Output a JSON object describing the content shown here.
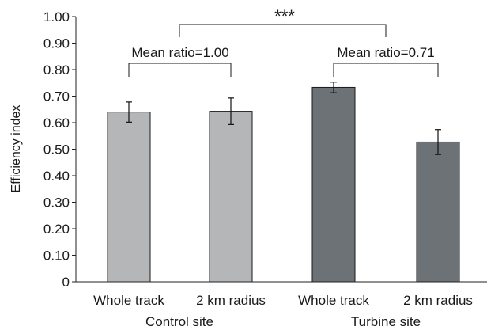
{
  "chart_data": {
    "type": "bar",
    "categories": [
      "Whole track",
      "2 km radius",
      "Whole track",
      "2 km radius"
    ],
    "groups": [
      {
        "label": "Control site",
        "category_indices": [
          0,
          1
        ]
      },
      {
        "label": "Turbine site",
        "category_indices": [
          2,
          3
        ]
      }
    ],
    "values": [
      0.64,
      0.643,
      0.733,
      0.527
    ],
    "errors": [
      0.038,
      0.05,
      0.02,
      0.047
    ],
    "bar_colors": [
      "#b5b6b8",
      "#b5b6b8",
      "#6d7276",
      "#6d7276"
    ],
    "ylabel": "Efficiency index",
    "ylim": [
      0,
      1.0
    ],
    "y_ticks": [
      "0",
      "0.10",
      "0.20",
      "0.30",
      "0.40",
      "0.50",
      "0.60",
      "0.70",
      "0.80",
      "0.90",
      "1.00"
    ],
    "grid": false,
    "annotations": {
      "control_ratio": "Mean ratio=1.00",
      "turbine_ratio": "Mean ratio=0.71",
      "significance": "***"
    }
  }
}
